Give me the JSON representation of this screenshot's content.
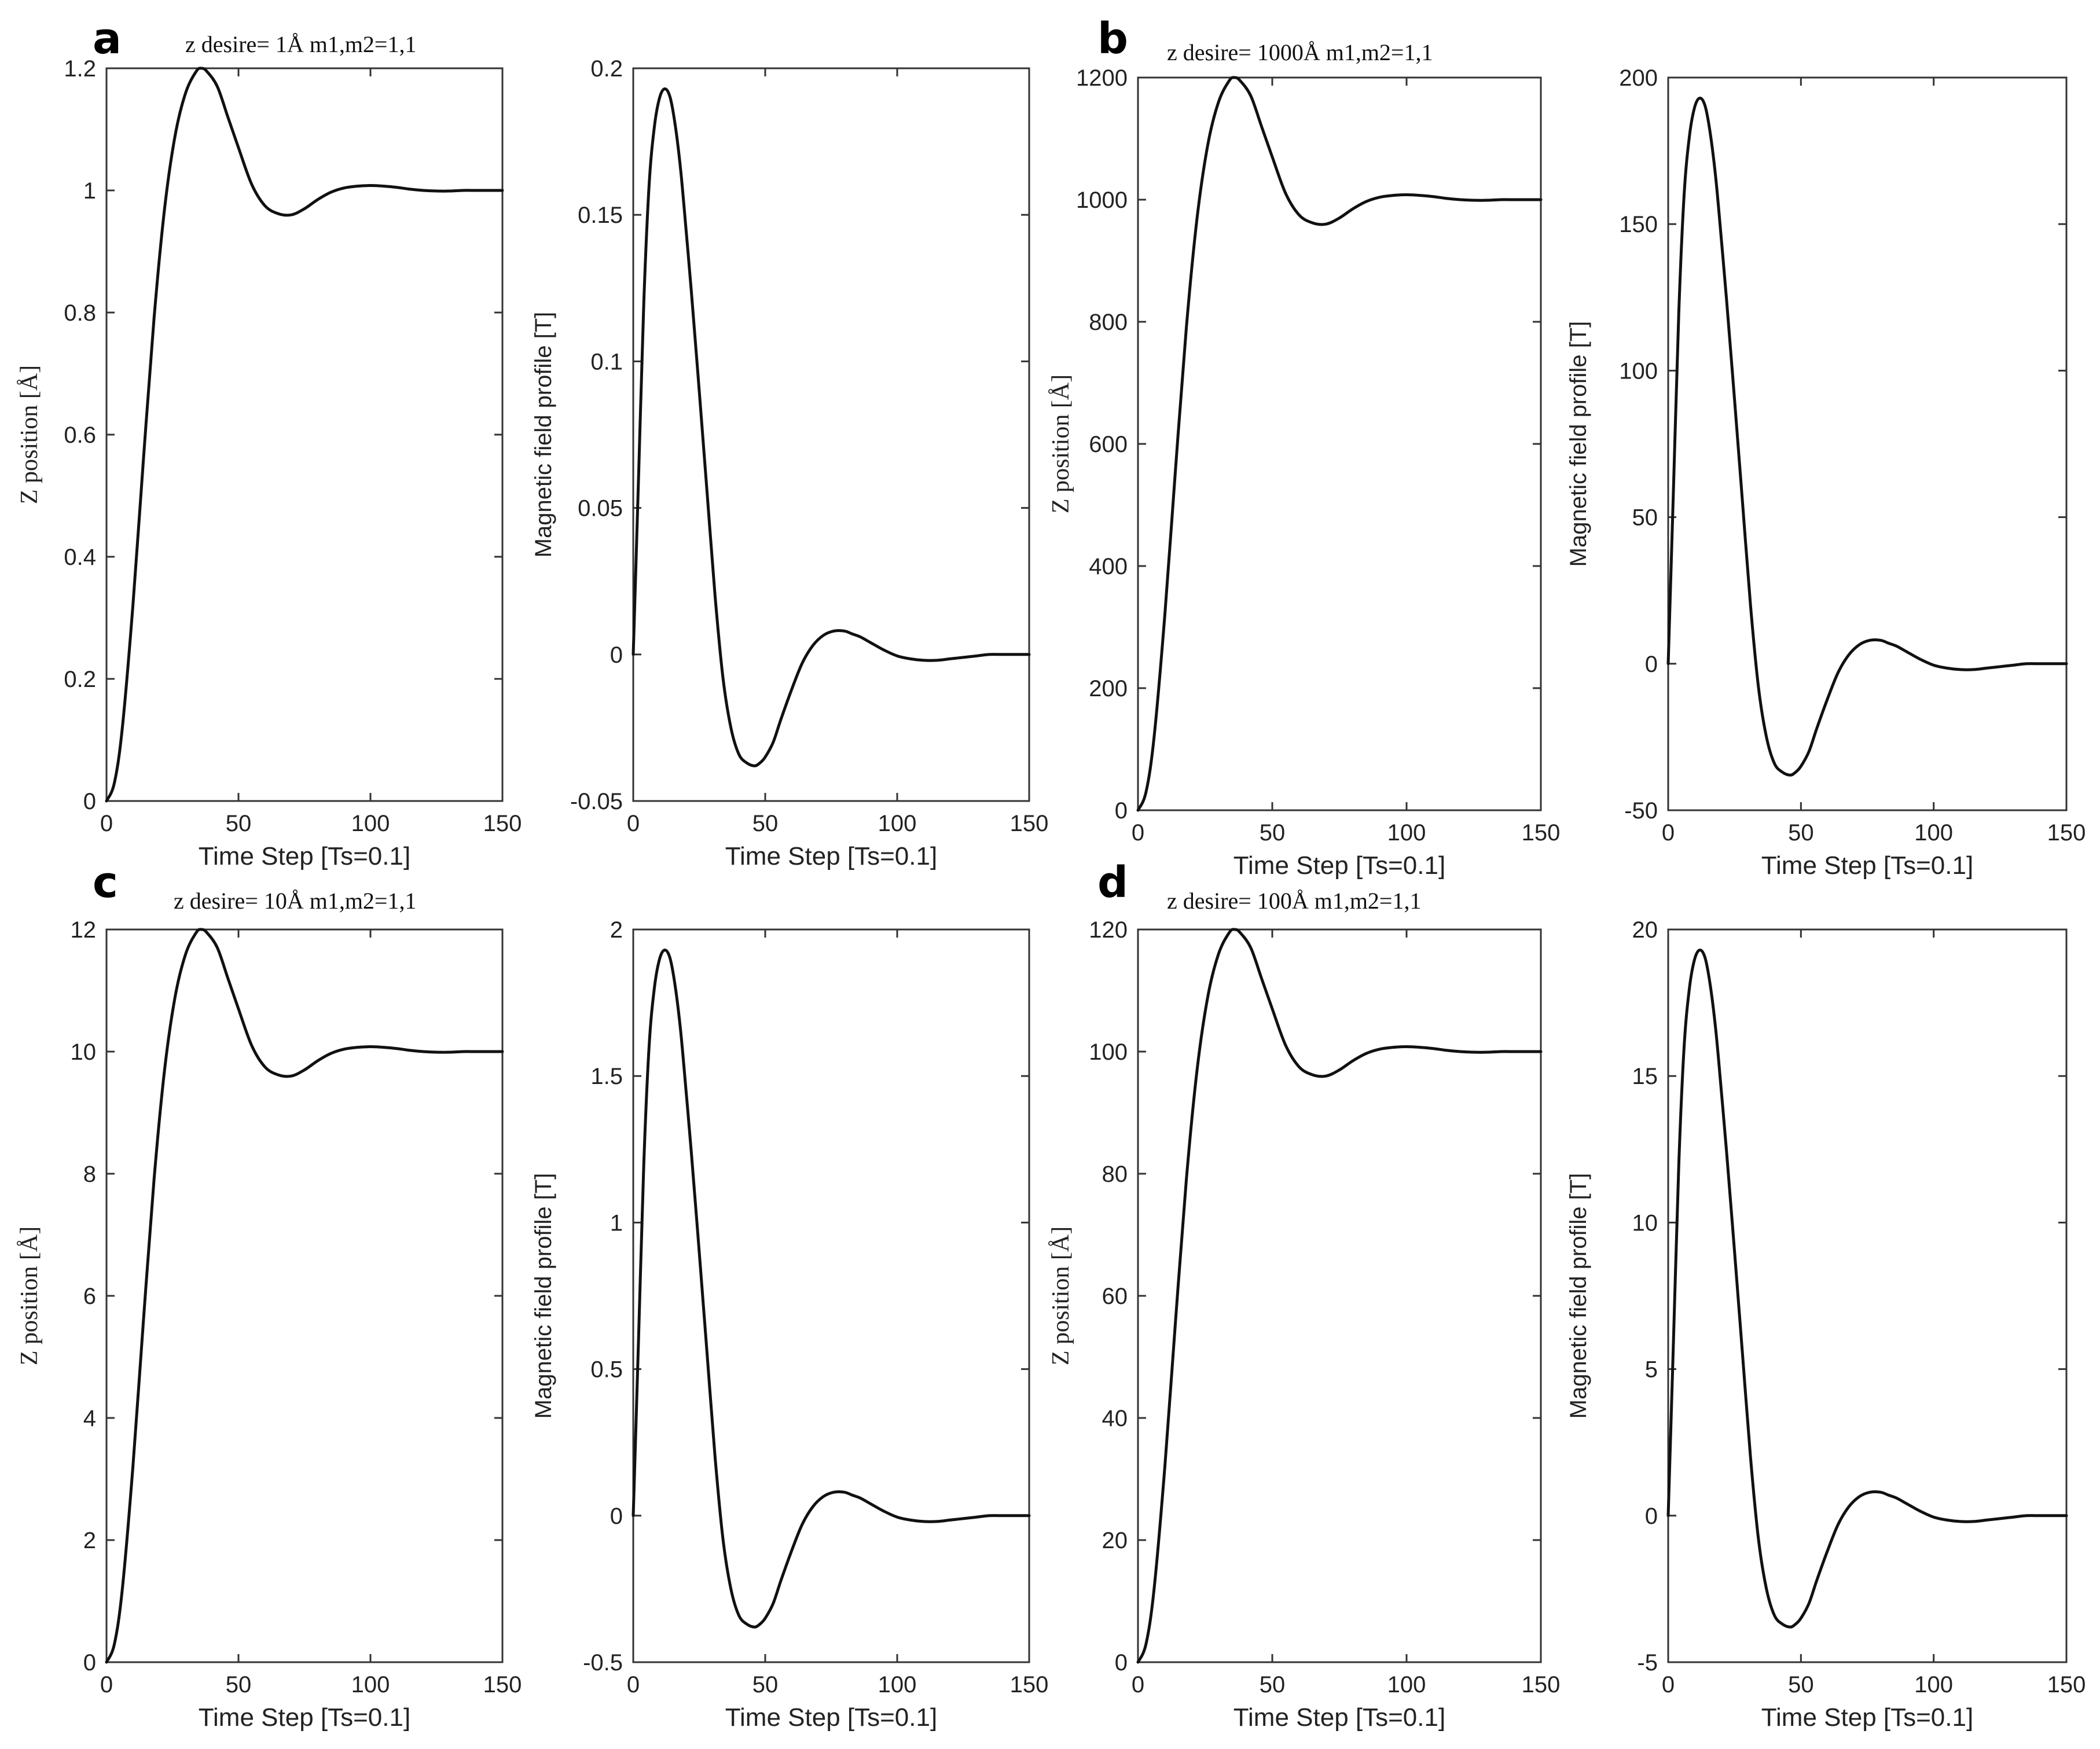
{
  "figure": {
    "panels": [
      {
        "label": "a",
        "title": "z desire= 1Å m1,m2=1,1"
      },
      {
        "label": "b",
        "title": "z desire= 1000Å m1,m2=1,1"
      },
      {
        "label": "c",
        "title": "z desire= 10Å m1,m2=1,1"
      },
      {
        "label": "d",
        "title": "z desire= 100Å m1,m2=1,1"
      }
    ]
  },
  "chart_data": [
    {
      "id": "a-pos",
      "panel": "a",
      "type": "line",
      "title": "z desire= 1Å m1,m2=1,1",
      "xlabel": "Time Step [Ts=0.1]",
      "ylabel": "Z position [Å]",
      "xlim": [
        0,
        150
      ],
      "ylim": [
        0,
        1.2
      ],
      "xticks": [
        0,
        50,
        100,
        150
      ],
      "xtick_labels": [
        "0",
        "50",
        "100",
        "150"
      ],
      "yticks": [
        0,
        0.2,
        0.4,
        0.6,
        0.8,
        1,
        1.2
      ],
      "ytick_labels": [
        "0",
        "0.2",
        "0.4",
        "0.6",
        "0.8",
        "1",
        "1.2"
      ],
      "scale": 1,
      "series": [
        {
          "name": "z position",
          "kind": "position"
        }
      ]
    },
    {
      "id": "a-field",
      "panel": "a",
      "type": "line",
      "title": "",
      "xlabel": "Time Step [Ts=0.1]",
      "ylabel": "Magnetic field profile [T]",
      "xlim": [
        0,
        150
      ],
      "ylim": [
        -0.05,
        0.2
      ],
      "xticks": [
        0,
        50,
        100,
        150
      ],
      "xtick_labels": [
        "0",
        "50",
        "100",
        "150"
      ],
      "yticks": [
        -0.05,
        0,
        0.05,
        0.1,
        0.15,
        0.2
      ],
      "ytick_labels": [
        "-0.05",
        "0",
        "0.05",
        "0.1",
        "0.15",
        "0.2"
      ],
      "scale": 0.1,
      "series": [
        {
          "name": "magnetic field",
          "kind": "field"
        }
      ]
    },
    {
      "id": "b-pos",
      "panel": "b",
      "type": "line",
      "title": "z desire= 1000Å m1,m2=1,1",
      "xlabel": "Time Step [Ts=0.1]",
      "ylabel": "Z position [Å]",
      "xlim": [
        0,
        150
      ],
      "ylim": [
        0,
        1200
      ],
      "xticks": [
        0,
        50,
        100,
        150
      ],
      "xtick_labels": [
        "0",
        "50",
        "100",
        "150"
      ],
      "yticks": [
        0,
        200,
        400,
        600,
        800,
        1000,
        1200
      ],
      "ytick_labels": [
        "0",
        "200",
        "400",
        "600",
        "800",
        "1000",
        "1200"
      ],
      "scale": 1000,
      "series": [
        {
          "name": "z position",
          "kind": "position"
        }
      ]
    },
    {
      "id": "b-field",
      "panel": "b",
      "type": "line",
      "title": "",
      "xlabel": "Time Step [Ts=0.1]",
      "ylabel": "Magnetic field profile [T]",
      "xlim": [
        0,
        150
      ],
      "ylim": [
        -50,
        200
      ],
      "xticks": [
        0,
        50,
        100,
        150
      ],
      "xtick_labels": [
        "0",
        "50",
        "100",
        "150"
      ],
      "yticks": [
        -50,
        0,
        50,
        100,
        150,
        200
      ],
      "ytick_labels": [
        "-50",
        "0",
        "50",
        "100",
        "150",
        "200"
      ],
      "scale": 100,
      "series": [
        {
          "name": "magnetic field",
          "kind": "field"
        }
      ]
    },
    {
      "id": "c-pos",
      "panel": "c",
      "type": "line",
      "title": "z desire= 10Å m1,m2=1,1",
      "xlabel": "Time Step [Ts=0.1]",
      "ylabel": "Z position [Å]",
      "xlim": [
        0,
        150
      ],
      "ylim": [
        0,
        12
      ],
      "xticks": [
        0,
        50,
        100,
        150
      ],
      "xtick_labels": [
        "0",
        "50",
        "100",
        "150"
      ],
      "yticks": [
        0,
        2,
        4,
        6,
        8,
        10,
        12
      ],
      "ytick_labels": [
        "0",
        "2",
        "4",
        "6",
        "8",
        "10",
        "12"
      ],
      "scale": 10,
      "series": [
        {
          "name": "z position",
          "kind": "position"
        }
      ]
    },
    {
      "id": "c-field",
      "panel": "c",
      "type": "line",
      "title": "",
      "xlabel": "Time Step [Ts=0.1]",
      "ylabel": "Magnetic field profile [T]",
      "xlim": [
        0,
        150
      ],
      "ylim": [
        -0.5,
        2
      ],
      "xticks": [
        0,
        50,
        100,
        150
      ],
      "xtick_labels": [
        "0",
        "50",
        "100",
        "150"
      ],
      "yticks": [
        -0.5,
        0,
        0.5,
        1,
        1.5,
        2
      ],
      "ytick_labels": [
        "-0.5",
        "0",
        "0.5",
        "1",
        "1.5",
        "2"
      ],
      "scale": 1,
      "series": [
        {
          "name": "magnetic field",
          "kind": "field"
        }
      ]
    },
    {
      "id": "d-pos",
      "panel": "d",
      "type": "line",
      "title": "z desire= 100Å m1,m2=1,1",
      "xlabel": "Time Step [Ts=0.1]",
      "ylabel": "Z position [Å]",
      "xlim": [
        0,
        150
      ],
      "ylim": [
        0,
        120
      ],
      "xticks": [
        0,
        50,
        100,
        150
      ],
      "xtick_labels": [
        "0",
        "50",
        "100",
        "150"
      ],
      "yticks": [
        0,
        20,
        40,
        60,
        80,
        100,
        120
      ],
      "ytick_labels": [
        "0",
        "20",
        "40",
        "60",
        "80",
        "100",
        "120"
      ],
      "scale": 100,
      "series": [
        {
          "name": "z position",
          "kind": "position"
        }
      ]
    },
    {
      "id": "d-field",
      "panel": "d",
      "type": "line",
      "title": "",
      "xlabel": "Time Step [Ts=0.1]",
      "ylabel": "Magnetic field profile [T]",
      "xlim": [
        0,
        150
      ],
      "ylim": [
        -5,
        20
      ],
      "xticks": [
        0,
        50,
        100,
        150
      ],
      "xtick_labels": [
        "0",
        "50",
        "100",
        "150"
      ],
      "yticks": [
        -5,
        0,
        5,
        10,
        15,
        20
      ],
      "ytick_labels": [
        "-5",
        "0",
        "5",
        "10",
        "15",
        "20"
      ],
      "scale": 10,
      "series": [
        {
          "name": "magnetic field",
          "kind": "field"
        }
      ]
    }
  ],
  "curves": {
    "position": {
      "x": [
        0,
        3,
        6,
        10,
        14,
        18,
        22,
        26,
        30,
        34,
        36,
        38,
        42,
        46,
        50,
        55,
        60,
        65,
        70,
        75,
        80,
        85,
        90,
        95,
        100,
        105,
        110,
        115,
        120,
        125,
        130,
        135,
        140,
        145,
        150
      ],
      "y": [
        0,
        0.03,
        0.12,
        0.32,
        0.56,
        0.79,
        0.97,
        1.09,
        1.16,
        1.195,
        1.2,
        1.195,
        1.17,
        1.12,
        1.07,
        1.01,
        0.975,
        0.962,
        0.96,
        0.97,
        0.985,
        0.997,
        1.004,
        1.007,
        1.008,
        1.007,
        1.005,
        1.002,
        1.0,
        0.999,
        0.999,
        1.0,
        1.0,
        1.0,
        1.0
      ]
    },
    "field": {
      "x": [
        0,
        2,
        4,
        6,
        8,
        10,
        12,
        14,
        16,
        18,
        20,
        22,
        25,
        28,
        31,
        34,
        37,
        40,
        43,
        46,
        48,
        50,
        53,
        56,
        60,
        64,
        68,
        72,
        76,
        80,
        83,
        86,
        90,
        95,
        100,
        105,
        110,
        115,
        120,
        125,
        130,
        135,
        140,
        145,
        150
      ],
      "y": [
        0,
        0.06,
        0.12,
        0.16,
        0.18,
        0.19,
        0.193,
        0.19,
        0.18,
        0.165,
        0.145,
        0.124,
        0.09,
        0.055,
        0.02,
        -0.008,
        -0.025,
        -0.034,
        -0.037,
        -0.038,
        -0.037,
        -0.035,
        -0.03,
        -0.022,
        -0.012,
        -0.003,
        0.003,
        0.0065,
        0.008,
        0.008,
        0.007,
        0.006,
        0.004,
        0.0015,
        -0.0005,
        -0.0015,
        -0.002,
        -0.002,
        -0.0015,
        -0.001,
        -0.0005,
        0.0,
        0.0,
        0.0,
        0.0
      ]
    }
  }
}
